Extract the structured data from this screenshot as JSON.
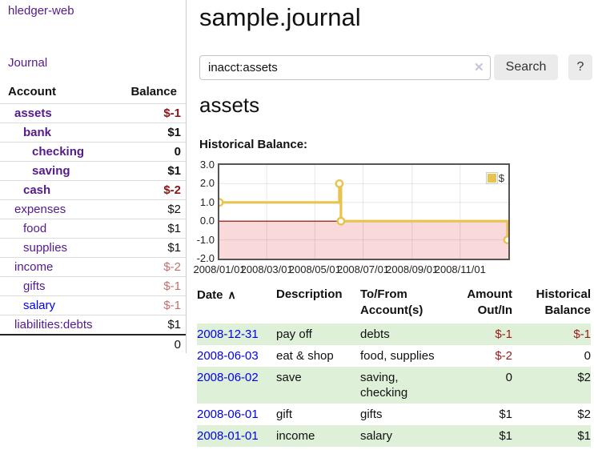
{
  "colors": {
    "link_visited": "#551a8b",
    "link_unvisited": "#0000ee",
    "negative_strong": "#8b1414",
    "negative_soft": "#c0706e",
    "table_negative": "#9b1b1b",
    "row_highlight": "#dff0d8",
    "button_bg": "#ebebeb"
  },
  "icons": {
    "sort_asc": "∧",
    "clear": "✕"
  },
  "app": {
    "brand": "hledger-web",
    "nav_journal": "Journal"
  },
  "sidebar": {
    "header": {
      "account": "Account",
      "balance": "Balance"
    },
    "accounts": [
      {
        "name": "assets",
        "balance": "$-1",
        "depth": 0,
        "strong": true,
        "balance_tone": "neg-strong",
        "link_tone": "visited"
      },
      {
        "name": "bank",
        "balance": "$1",
        "depth": 1,
        "strong": true,
        "balance_tone": "plain",
        "link_tone": "visited"
      },
      {
        "name": "checking",
        "balance": "0",
        "depth": 2,
        "strong": true,
        "balance_tone": "plain",
        "link_tone": "visited"
      },
      {
        "name": "saving",
        "balance": "$1",
        "depth": 2,
        "strong": true,
        "balance_tone": "plain",
        "link_tone": "visited"
      },
      {
        "name": "cash",
        "balance": "$-2",
        "depth": 1,
        "strong": true,
        "balance_tone": "neg-strong",
        "link_tone": "visited"
      },
      {
        "name": "expenses",
        "balance": "$2",
        "depth": 0,
        "strong": false,
        "balance_tone": "plain",
        "link_tone": "visited"
      },
      {
        "name": "food",
        "balance": "$1",
        "depth": 1,
        "strong": false,
        "balance_tone": "plain",
        "link_tone": "visited"
      },
      {
        "name": "supplies",
        "balance": "$1",
        "depth": 1,
        "strong": false,
        "balance_tone": "plain",
        "link_tone": "visited"
      },
      {
        "name": "income",
        "balance": "$-2",
        "depth": 0,
        "strong": false,
        "balance_tone": "neg-soft",
        "link_tone": "visited"
      },
      {
        "name": "gifts",
        "balance": "$-1",
        "depth": 1,
        "strong": false,
        "balance_tone": "neg-soft",
        "link_tone": "visited"
      },
      {
        "name": "salary",
        "balance": "$-1",
        "depth": 1,
        "strong": false,
        "balance_tone": "neg-soft",
        "link_tone": "unvisited"
      },
      {
        "name": "liabilities:debts",
        "balance": "$1",
        "depth": 0,
        "strong": false,
        "balance_tone": "plain",
        "link_tone": "visited"
      }
    ],
    "total": "0"
  },
  "main": {
    "title": "sample.journal",
    "search": {
      "value": "inacct:assets",
      "button_label": "Search",
      "help_label": "?"
    },
    "account_heading": "assets"
  },
  "chart_data": {
    "type": "line",
    "step": true,
    "title": "Historical Balance:",
    "series": [
      {
        "name": "$",
        "points": [
          [
            "2008-01-01",
            1
          ],
          [
            "2008-06-01",
            2
          ],
          [
            "2008-06-03",
            0
          ],
          [
            "2008-12-31",
            -1
          ]
        ]
      }
    ],
    "x_range": [
      "2008-01-01",
      "2009-01-01"
    ],
    "ylim": [
      -2,
      3
    ],
    "y_ticks": [
      3.0,
      2.0,
      1.0,
      0.0,
      -1.0,
      -2.0
    ],
    "y_tick_labels": [
      "3.0",
      "2.0",
      "1.0",
      "0.0",
      "-1.0",
      "-2.0"
    ],
    "x_ticks": [
      "2008/01/01",
      "2008/03/01",
      "2008/05/01",
      "2008/07/01",
      "2008/09/01",
      "2008/11/01"
    ],
    "x_tick_dates": [
      "2008-01-01",
      "2008-03-01",
      "2008-05-01",
      "2008-07-01",
      "2008-09-01",
      "2008-11-01"
    ],
    "grid": true,
    "legend_position": "top-right",
    "line_color": "#e8c44e",
    "marker_fill": "#ffffff",
    "zero_line_color": "#8b0000",
    "negative_region_fill": "#f9d9d9"
  },
  "table": {
    "headers": [
      "Date",
      "Description",
      "To/From Account(s)",
      "Amount Out/In",
      "Historical Balance"
    ],
    "rows": [
      {
        "date": "2008-12-31",
        "description": "pay off",
        "accounts": "debts",
        "amount": "$-1",
        "balance": "$-1",
        "amount_tone": "neg",
        "balance_tone": "neg"
      },
      {
        "date": "2008-06-03",
        "description": "eat & shop",
        "accounts": "food, supplies",
        "amount": "$-2",
        "balance": "0",
        "amount_tone": "neg",
        "balance_tone": "plain"
      },
      {
        "date": "2008-06-02",
        "description": "save",
        "accounts": "saving, checking",
        "amount": "0",
        "balance": "$2",
        "amount_tone": "plain",
        "balance_tone": "plain"
      },
      {
        "date": "2008-06-01",
        "description": "gift",
        "accounts": "gifts",
        "amount": "$1",
        "balance": "$2",
        "amount_tone": "plain",
        "balance_tone": "plain"
      },
      {
        "date": "2008-01-01",
        "description": "income",
        "accounts": "salary",
        "amount": "$1",
        "balance": "$1",
        "amount_tone": "plain",
        "balance_tone": "plain"
      }
    ]
  }
}
